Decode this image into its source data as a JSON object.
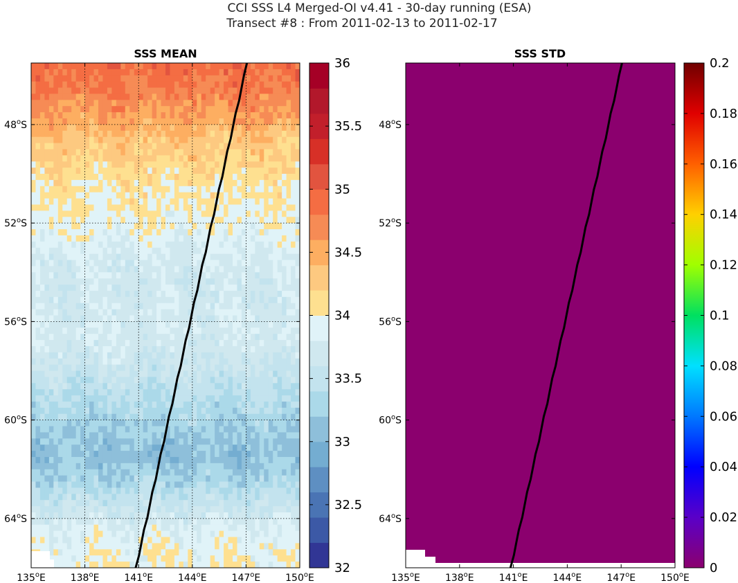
{
  "header": {
    "title": "CCI SSS L4 Merged-OI v4.41 - 30-day running (ESA)",
    "subtitle": "Transect #8 : From 2011-02-13 to 2011-02-17"
  },
  "chart_data": [
    {
      "type": "heatmap",
      "title": "SSS MEAN",
      "xlabel": "",
      "ylabel": "",
      "xlim": [
        135,
        150
      ],
      "ylim": [
        -66.0,
        -45.5
      ],
      "x_ticks": [
        135,
        138,
        141,
        144,
        147,
        150
      ],
      "x_tick_labels": [
        "135°E",
        "138°E",
        "141°E",
        "144°E",
        "147°E",
        "150°E"
      ],
      "y_ticks": [
        -48,
        -52,
        -56,
        -60,
        -64
      ],
      "y_tick_labels": [
        "48°S",
        "52°S",
        "56°S",
        "60°S",
        "64°S"
      ],
      "grid": true,
      "colormap": "RdYlBu_r (discrete, 0.2 steps)",
      "colorbar": {
        "range": [
          32,
          36
        ],
        "step": 0.2,
        "tick_values": [
          32,
          32.5,
          33,
          33.5,
          34,
          34.5,
          35,
          35.5,
          36
        ],
        "tick_labels": [
          "32",
          "32.5",
          "33",
          "33.5",
          "34",
          "34.5",
          "35",
          "35.5",
          "36"
        ]
      },
      "field_profile": {
        "lat": [
          -45.5,
          -46.5,
          -47.5,
          -48.5,
          -49.5,
          -50.5,
          -51.5,
          -52.5,
          -53.5,
          -54.5,
          -55.5,
          -56.5,
          -57.5,
          -58.5,
          -59.5,
          -60.5,
          -61.5,
          -62.5,
          -63.5,
          -64.5,
          -65.5
        ],
        "sss": [
          34.9,
          34.8,
          34.6,
          34.35,
          34.2,
          34.05,
          34.0,
          33.9,
          33.75,
          33.7,
          33.7,
          33.75,
          33.65,
          33.5,
          33.35,
          33.2,
          33.1,
          33.3,
          33.6,
          33.85,
          33.95
        ]
      },
      "transect": {
        "lon": [
          147.05,
          140.85
        ],
        "lat": [
          -45.5,
          -66.0
        ]
      }
    },
    {
      "type": "heatmap",
      "title": "SSS STD",
      "xlabel": "",
      "ylabel": "",
      "xlim": [
        135,
        150
      ],
      "ylim": [
        -66.0,
        -45.5
      ],
      "x_ticks": [
        135,
        138,
        141,
        144,
        147,
        150
      ],
      "x_tick_labels": [
        "135°E",
        "138°E",
        "141°E",
        "144°E",
        "147°E",
        "150°E"
      ],
      "y_ticks": [
        -48,
        -52,
        -56,
        -60,
        -64
      ],
      "y_tick_labels": [
        "48°S",
        "52°S",
        "56°S",
        "60°S",
        "64°S"
      ],
      "grid": false,
      "colormap": "jet-like (purple to dark red)",
      "field_value": 0,
      "field_color": "#8b006e",
      "colorbar": {
        "range": [
          0,
          0.2
        ],
        "tick_values": [
          0,
          0.02,
          0.04,
          0.06,
          0.08,
          0.1,
          0.12,
          0.14,
          0.16,
          0.18,
          0.2
        ],
        "tick_labels": [
          "0",
          "0.02",
          "0.04",
          "0.06",
          "0.08",
          "0.1",
          "0.12",
          "0.14",
          "0.16",
          "0.18",
          "0.2"
        ]
      },
      "transect": {
        "lon": [
          147.05,
          140.85
        ],
        "lat": [
          -45.5,
          -66.0
        ]
      }
    }
  ]
}
